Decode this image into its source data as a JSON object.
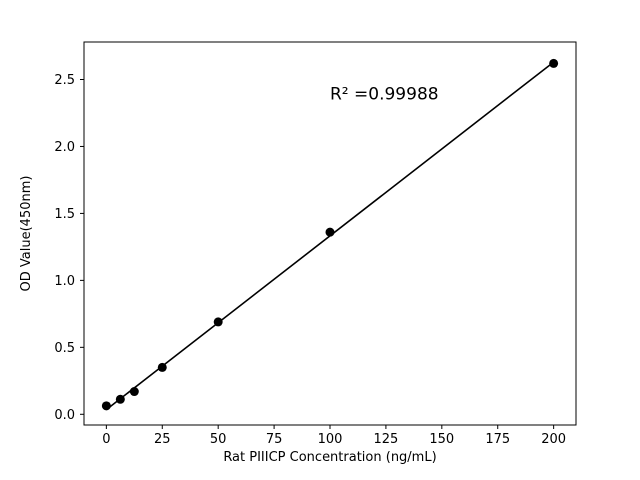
{
  "chart_data": {
    "type": "scatter",
    "title": "",
    "xlabel": "Rat PIIICP Concentration (ng/mL)",
    "ylabel": "OD Value(450nm)",
    "annotation": "R² =0.99988",
    "x": [
      0,
      6.25,
      12.5,
      25,
      50,
      100,
      200
    ],
    "y": [
      0.063,
      0.112,
      0.17,
      0.35,
      0.69,
      1.36,
      2.62
    ],
    "fit_line": {
      "x": [
        0,
        200
      ],
      "y": [
        0.035,
        2.63
      ]
    },
    "xlim": [
      -10,
      210
    ],
    "ylim": [
      -0.08,
      2.78
    ],
    "xticks": [
      0,
      25,
      50,
      75,
      100,
      125,
      150,
      175,
      200
    ],
    "yticks": [
      0.0,
      0.5,
      1.0,
      1.5,
      2.0,
      2.5
    ],
    "grid": false,
    "legend": "none",
    "marker_color": "#000000",
    "line_color": "#000000",
    "axis_color": "#000000",
    "background_color": "#ffffff"
  }
}
